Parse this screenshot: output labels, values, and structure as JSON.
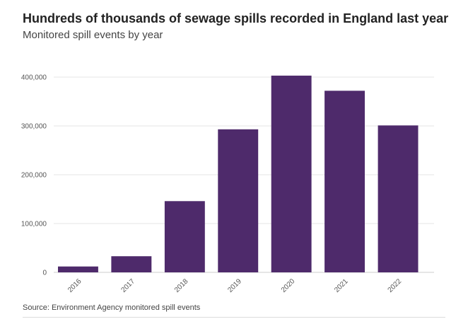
{
  "chart_data": {
    "type": "bar",
    "title": "Hundreds of thousands of sewage spills recorded in England last year",
    "subtitle": "Monitored spill events by year",
    "categories": [
      "2016",
      "2017",
      "2018",
      "2019",
      "2020",
      "2021",
      "2022"
    ],
    "values": [
      12000,
      33000,
      146000,
      293000,
      403000,
      372000,
      301000
    ],
    "ylim": [
      0,
      400000
    ],
    "yticks": [
      0,
      100000,
      200000,
      300000,
      400000
    ],
    "ytick_labels": [
      "0",
      "100,000",
      "200,000",
      "300,000",
      "400,000"
    ],
    "grid": true,
    "bar_color": "#4e2a6b",
    "source": "Source: Environment Agency monitored spill events"
  }
}
